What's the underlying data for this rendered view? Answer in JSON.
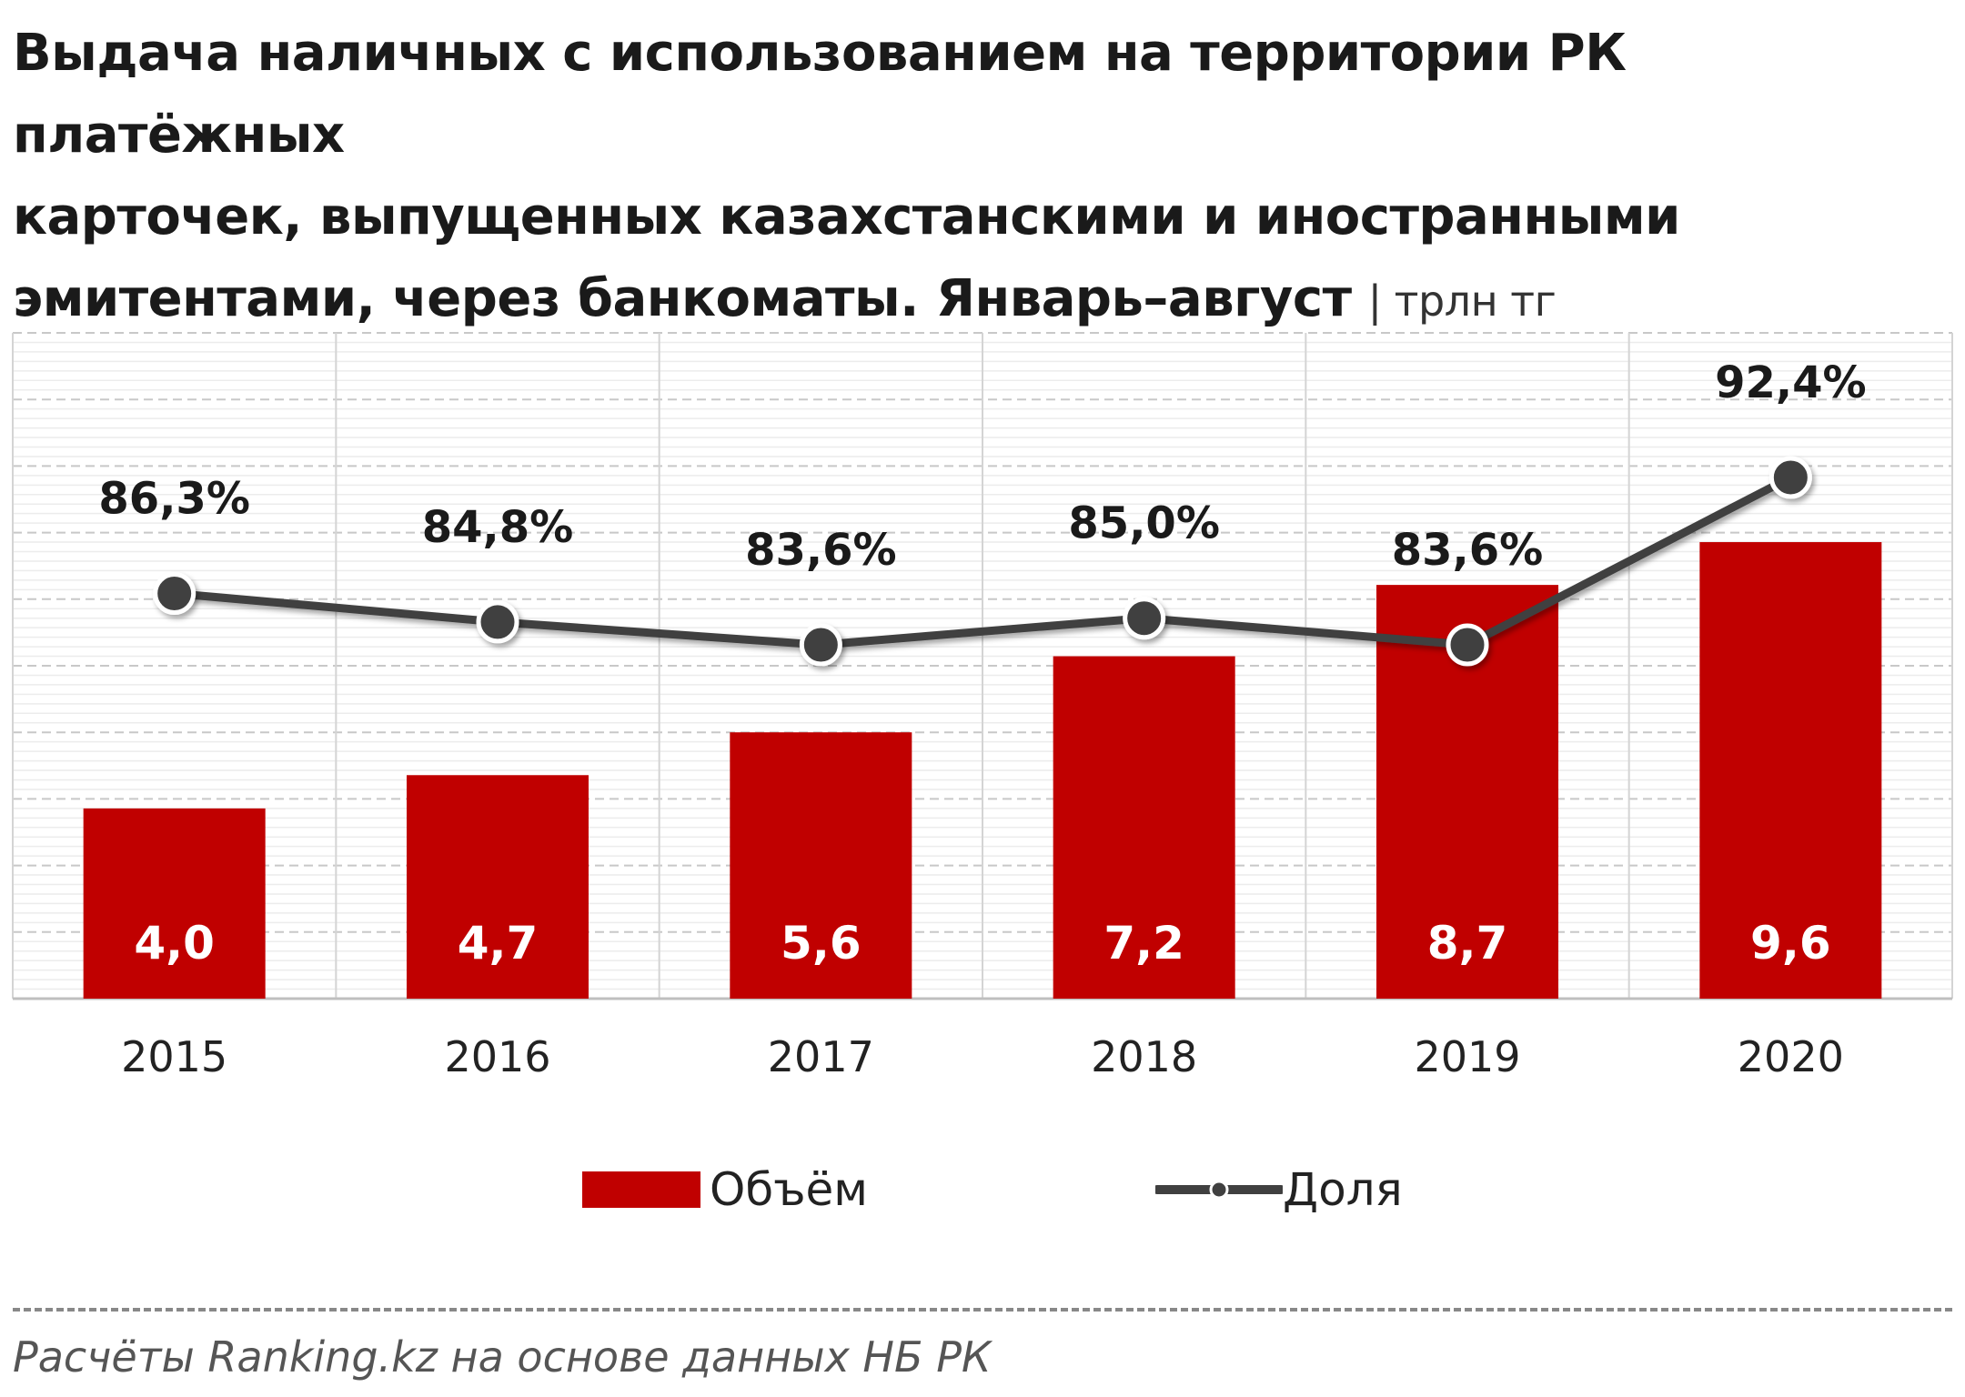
{
  "title": {
    "line1": "Выдача наличных с использованием на территории РК платёжных",
    "line2": "карточек, выпущенных казахстанскими и иностранными",
    "line3": "эмитентами, через банкоматы. Январь–август",
    "unit": "| трлн тг"
  },
  "legend": {
    "bar_label": "Объём",
    "line_label": "Доля"
  },
  "source": "Расчёты Ranking.kz на основе данных НБ РК",
  "colors": {
    "bar": "#c00000",
    "line": "#404040",
    "marker_fill": "#404040",
    "marker_stroke": "#ffffff"
  },
  "chart_data": {
    "type": "bar+line",
    "categories": [
      "2015",
      "2016",
      "2017",
      "2018",
      "2019",
      "2020"
    ],
    "series": [
      {
        "name": "Объём",
        "type": "bar",
        "values": [
          4.0,
          4.7,
          5.6,
          7.2,
          8.7,
          9.6
        ],
        "labels": [
          "4,0",
          "4,7",
          "5,6",
          "7,2",
          "8,7",
          "9,6"
        ]
      },
      {
        "name": "Доля",
        "type": "line",
        "values": [
          86.3,
          84.8,
          83.6,
          85.0,
          83.6,
          92.4
        ],
        "labels": [
          "86,3%",
          "84,8%",
          "83,6%",
          "85,0%",
          "83,6%",
          "92,4%"
        ]
      }
    ],
    "ylim_bar": [
      0,
      14
    ],
    "ylim_line": [
      65,
      100
    ],
    "grid": true,
    "legend_position": "bottom"
  }
}
